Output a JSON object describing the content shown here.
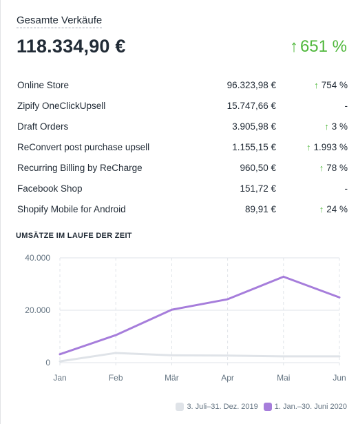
{
  "card": {
    "title": "Gesamte Verkäufe",
    "total": "118.334,90 €",
    "total_change": "651 %"
  },
  "channels": [
    {
      "name": "Online Store",
      "amount": "96.323,98 €",
      "change": "754 %",
      "up": true
    },
    {
      "name": "Zipify OneClickUpsell",
      "amount": "15.747,66 €",
      "change": "-",
      "up": false
    },
    {
      "name": "Draft Orders",
      "amount": "3.905,98 €",
      "change": "3 %",
      "up": true
    },
    {
      "name": "ReConvert post purchase upsell",
      "amount": "1.155,15 €",
      "change": "1.993 %",
      "up": true
    },
    {
      "name": "Recurring Billing by ReCharge",
      "amount": "960,50 €",
      "change": "78 %",
      "up": true
    },
    {
      "name": "Facebook Shop",
      "amount": "151,72 €",
      "change": "-",
      "up": false
    },
    {
      "name": "Shopify Mobile for Android",
      "amount": "89,91 €",
      "change": "24 %",
      "up": true
    }
  ],
  "colors": {
    "positive": "#50b83c",
    "current_series": "#a67ddb",
    "previous_series": "#dfe3e8"
  },
  "chart_data": {
    "type": "line",
    "title": "UMSÄTZE IM LAUFE DER ZEIT",
    "categories": [
      "Jan",
      "Feb",
      "Mär",
      "Apr",
      "Mai",
      "Jun"
    ],
    "y_ticks": [
      "0",
      "20.000",
      "40.000"
    ],
    "ylim": [
      0,
      40000
    ],
    "grid": true,
    "legend_position": "bottom-right",
    "series": [
      {
        "name": "3. Juli–31. Dez. 2019",
        "color": "#dfe3e8",
        "values": [
          500,
          3700,
          2800,
          2700,
          2400,
          2400
        ]
      },
      {
        "name": "1. Jan.–30. Juni 2020",
        "color": "#a67ddb",
        "values": [
          3200,
          10500,
          20200,
          24200,
          32800,
          24900
        ]
      }
    ]
  }
}
